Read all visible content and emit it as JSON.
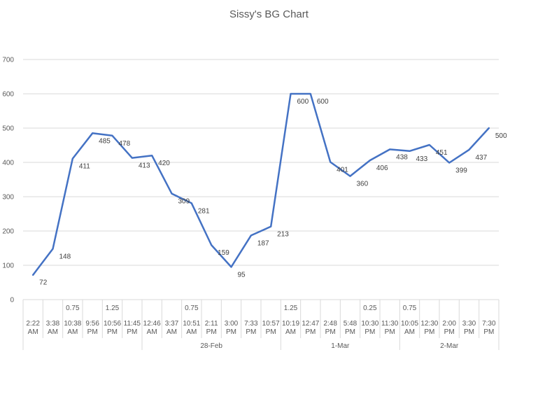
{
  "chart_data": {
    "type": "line",
    "title": "Sissy's BG Chart",
    "xlabel": "",
    "ylabel": "",
    "ylim": [
      0,
      700
    ],
    "yticks": [
      0,
      100,
      200,
      300,
      400,
      500,
      600,
      700
    ],
    "grid": true,
    "legend": "none",
    "series_color": "#4472c4",
    "categories": [
      {
        "dose": "",
        "time": [
          "2:22",
          "AM"
        ]
      },
      {
        "dose": "",
        "time": [
          "3:38",
          "AM"
        ]
      },
      {
        "dose": "0.75",
        "time": [
          "10:38",
          "AM"
        ]
      },
      {
        "dose": "",
        "time": [
          "9:56",
          "PM"
        ]
      },
      {
        "dose": "1.25",
        "time": [
          "10:56",
          "PM"
        ]
      },
      {
        "dose": "",
        "time": [
          "11:45",
          "PM"
        ]
      },
      {
        "dose": "",
        "time": [
          "12:46",
          "AM"
        ]
      },
      {
        "dose": "",
        "time": [
          "3:37",
          "AM"
        ]
      },
      {
        "dose": "0.75",
        "time": [
          "10:51",
          "AM"
        ]
      },
      {
        "dose": "",
        "time": [
          "2:11",
          "PM"
        ]
      },
      {
        "dose": "",
        "time": [
          "3:00",
          "PM"
        ]
      },
      {
        "dose": "",
        "time": [
          "7:33",
          "PM"
        ]
      },
      {
        "dose": "",
        "time": [
          "10:57",
          "PM"
        ]
      },
      {
        "dose": "1.25",
        "time": [
          "10:19",
          "AM"
        ]
      },
      {
        "dose": "",
        "time": [
          "12:47",
          "PM"
        ]
      },
      {
        "dose": "",
        "time": [
          "2:48",
          "PM"
        ]
      },
      {
        "dose": "",
        "time": [
          "5:48",
          "PM"
        ]
      },
      {
        "dose": "0.25",
        "time": [
          "10:30",
          "PM"
        ]
      },
      {
        "dose": "",
        "time": [
          "11:30",
          "PM"
        ]
      },
      {
        "dose": "0.75",
        "time": [
          "10:05",
          "AM"
        ]
      },
      {
        "dose": "",
        "time": [
          "12:30",
          "PM"
        ]
      },
      {
        "dose": "",
        "time": [
          "2:00",
          "PM"
        ]
      },
      {
        "dose": "",
        "time": [
          "3:30",
          "PM"
        ]
      },
      {
        "dose": "",
        "time": [
          "7:30",
          "PM"
        ]
      }
    ],
    "values": [
      72,
      148,
      411,
      485,
      478,
      413,
      420,
      309,
      281,
      159,
      95,
      187,
      213,
      600,
      600,
      401,
      360,
      406,
      438,
      433,
      451,
      399,
      437,
      500
    ],
    "date_groups": [
      {
        "label": "",
        "start": 0,
        "end": 5
      },
      {
        "label": "28-Feb",
        "start": 6,
        "end": 12
      },
      {
        "label": "1-Mar",
        "start": 13,
        "end": 18
      },
      {
        "label": "2-Mar",
        "start": 19,
        "end": 23
      }
    ]
  }
}
